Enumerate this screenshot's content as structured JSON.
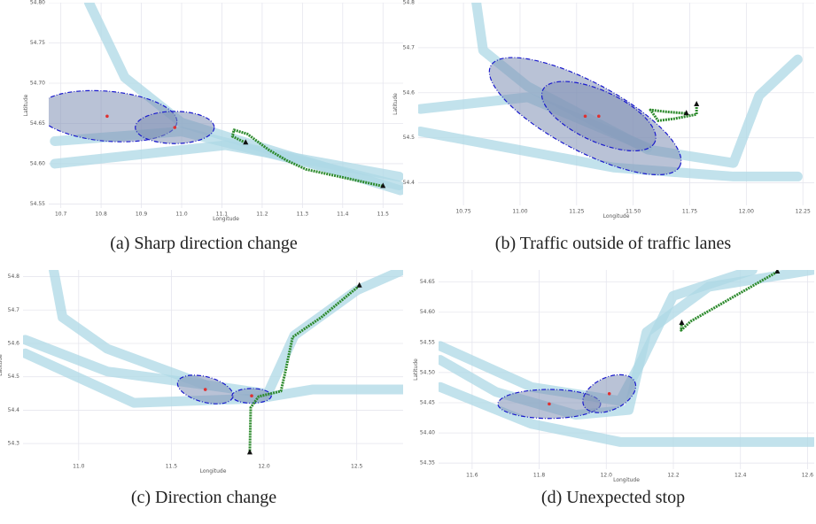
{
  "chart_data": [
    {
      "type": "line",
      "caption": "(a) Sharp direction change",
      "xlabel": "Longitude",
      "ylabel": "Latitude",
      "xlim": [
        10.67,
        11.55
      ],
      "ylim": [
        54.545,
        54.8
      ],
      "xticks": [
        10.7,
        10.8,
        10.9,
        {
          "value": 11,
          "label": "11.0"
        },
        11.1,
        11.2,
        11.3,
        11.4,
        11.5
      ],
      "yticks": [
        54.55,
        {
          "value": 54.6,
          "label": "54.60"
        },
        54.65,
        {
          "value": 54.7,
          "label": "54.70"
        },
        54.75,
        {
          "value": 54.8,
          "label": "54.80"
        }
      ],
      "grid": true,
      "lanes": {
        "color": "#add8e6",
        "series": [
          {
            "x": [
              10.77,
              10.859,
              11.0,
              11.543
            ],
            "y": [
              54.8,
              54.707,
              54.651,
              54.567
            ]
          },
          {
            "x": [
              10.685,
              11.109,
              11.54
            ],
            "y": [
              54.6,
              54.623,
              54.584
            ]
          },
          {
            "x": [
              10.685,
              11.0,
              11.54
            ],
            "y": [
              54.628,
              54.64,
              54.573
            ]
          }
        ]
      },
      "ellipses": {
        "edge": "#1a1acd",
        "fill": "#7f8fb5",
        "center_color": "#e03030",
        "items": [
          {
            "cx": 10.815,
            "cy": 54.659,
            "rx": 0.174,
            "ry": 0.031,
            "angle": 5
          },
          {
            "cx": 10.983,
            "cy": 54.645,
            "rx": 0.098,
            "ry": 0.02,
            "angle": 0
          }
        ]
      },
      "trajectory": {
        "color": "#2e8b2e",
        "x": [
          11.159,
          11.126,
          11.13,
          11.163,
          11.217,
          11.261,
          11.309,
          11.391,
          11.5
        ],
        "y": [
          54.626,
          54.634,
          54.642,
          54.637,
          54.617,
          54.604,
          54.593,
          54.584,
          54.572
        ]
      }
    },
    {
      "type": "line",
      "caption": "(b) Traffic outside of traffic lanes",
      "xlabel": "Longitude",
      "ylabel": "Latitude",
      "xlim": [
        10.55,
        12.3
      ],
      "ylim": [
        54.35,
        54.8
      ],
      "xticks": [
        10.75,
        {
          "value": 11,
          "label": "11.00"
        },
        11.25,
        {
          "value": 11.5,
          "label": "11.50"
        },
        11.75,
        {
          "value": 12,
          "label": "12.00"
        },
        12.25
      ],
      "yticks": [
        54.4,
        54.5,
        54.6,
        54.7,
        54.8
      ],
      "grid": true,
      "lanes": {
        "color": "#add8e6",
        "series": [
          {
            "x": [
              10.807,
              10.837,
              11.034,
              11.564,
              11.943,
              12.057,
              12.227
            ],
            "y": [
              54.8,
              54.694,
              54.614,
              54.474,
              54.444,
              54.594,
              54.674
            ]
          },
          {
            "x": [
              10.56,
              11.034,
              11.564
            ],
            "y": [
              54.564,
              54.59,
              54.478
            ]
          },
          {
            "x": [
              10.56,
              11.413,
              11.943,
              12.227
            ],
            "y": [
              54.514,
              54.434,
              54.414,
              54.414
            ]
          }
        ]
      },
      "ellipses": {
        "edge": "#1a1acd",
        "fill": "#7f8fb5",
        "center_color": "#e03030",
        "items": [
          {
            "cx": 11.288,
            "cy": 54.548,
            "rx": 0.473,
            "ry": 0.076,
            "angle": 28
          },
          {
            "cx": 11.348,
            "cy": 54.548,
            "rx": 0.273,
            "ry": 0.056,
            "angle": 25
          }
        ]
      },
      "trajectory": {
        "color": "#2e8b2e",
        "x": [
          11.78,
          11.78,
          11.678,
          11.61,
          11.576,
          11.64,
          11.735
        ],
        "y": [
          54.574,
          54.552,
          54.542,
          54.538,
          54.562,
          54.558,
          54.554
        ]
      }
    },
    {
      "type": "line",
      "caption": "(c) Direction change",
      "xlabel": "Longitude",
      "ylabel": "Latitude",
      "xlim": [
        10.7,
        12.75
      ],
      "ylim": [
        54.25,
        54.82
      ],
      "xticks": [
        {
          "value": 11,
          "label": "11.0"
        },
        11.5,
        {
          "value": 12,
          "label": "12.0"
        },
        12.5
      ],
      "yticks": [
        54.3,
        54.4,
        54.5,
        54.6,
        54.7,
        54.8
      ],
      "grid": true,
      "lanes": {
        "color": "#add8e6",
        "series": [
          {
            "x": [
              10.712,
              11.154,
              11.683,
              12.019,
              12.163,
              12.5,
              12.75
            ],
            "y": [
              54.611,
              54.516,
              54.476,
              54.449,
              54.624,
              54.759,
              54.82
            ]
          },
          {
            "x": [
              10.865,
              10.913,
              11.154,
              11.683
            ],
            "y": [
              54.82,
              54.678,
              54.584,
              54.476
            ]
          },
          {
            "x": [
              10.712,
              11.298,
              11.971,
              12.26,
              12.75
            ],
            "y": [
              54.57,
              54.422,
              54.435,
              54.462,
              54.462
            ]
          }
        ]
      },
      "ellipses": {
        "edge": "#1a1acd",
        "fill": "#7f8fb5",
        "center_color": "#e03030",
        "items": [
          {
            "cx": 11.683,
            "cy": 54.462,
            "rx": 0.154,
            "ry": 0.038,
            "angle": 15
          },
          {
            "cx": 11.933,
            "cy": 54.443,
            "rx": 0.106,
            "ry": 0.022,
            "angle": 0
          }
        ]
      },
      "trajectory": {
        "color": "#2e8b2e",
        "x": [
          12.514,
          12.308,
          12.154,
          12.115,
          12.091,
          11.971,
          11.928,
          11.923
        ],
        "y": [
          54.773,
          54.678,
          54.619,
          54.516,
          54.457,
          54.441,
          54.408,
          54.273
        ]
      }
    },
    {
      "type": "line",
      "caption": "(d) Unexpected stop",
      "xlabel": "Longitude",
      "ylabel": "Latitude",
      "xlim": [
        11.5,
        12.62
      ],
      "ylim": [
        54.34,
        54.67
      ],
      "xticks": [
        11.6,
        11.8,
        {
          "value": 12,
          "label": "12.0"
        },
        12.2,
        12.4,
        12.6
      ],
      "yticks": [
        54.35,
        {
          "value": 54.4,
          "label": "54.40"
        },
        54.45,
        {
          "value": 54.5,
          "label": "54.50"
        },
        54.55,
        {
          "value": 54.6,
          "label": "54.60"
        },
        54.65
      ],
      "grid": true,
      "lanes": {
        "color": "#add8e6",
        "series": [
          {
            "x": [
              11.505,
              11.671,
              11.909,
              12.067,
              12.12,
              12.305,
              12.616
            ],
            "y": [
              54.521,
              54.468,
              54.43,
              54.438,
              54.567,
              54.642,
              54.67
            ]
          },
          {
            "x": [
              11.505,
              11.777,
              12.041,
              12.616
            ],
            "y": [
              54.476,
              54.415,
              54.385,
              54.385
            ]
          },
          {
            "x": [
              11.505,
              11.777,
              12.041,
              12.107,
              12.199,
              12.436
            ],
            "y": [
              54.544,
              54.476,
              54.453,
              54.521,
              54.627,
              54.67
            ]
          }
        ]
      },
      "ellipses": {
        "edge": "#1a1acd",
        "fill": "#7f8fb5",
        "center_color": "#e03030",
        "items": [
          {
            "cx": 11.83,
            "cy": 54.448,
            "rx": 0.153,
            "ry": 0.024,
            "angle": 0
          },
          {
            "cx": 12.009,
            "cy": 54.465,
            "rx": 0.084,
            "ry": 0.027,
            "angle": -25
          }
        ]
      },
      "trajectory": {
        "color": "#2e8b2e",
        "x": [
          12.51,
          12.384,
          12.252,
          12.223,
          12.225
        ],
        "y": [
          54.667,
          54.627,
          54.585,
          54.57,
          54.582
        ]
      }
    }
  ]
}
